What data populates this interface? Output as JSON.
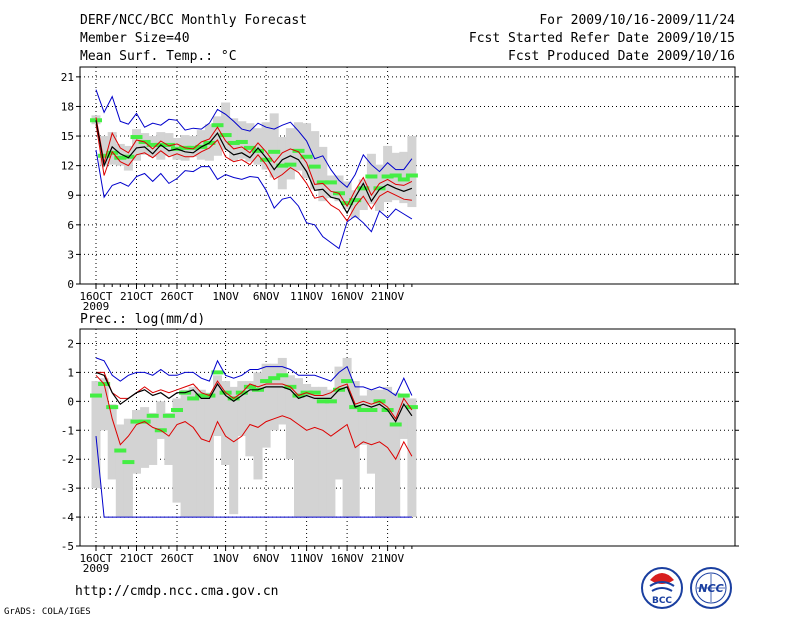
{
  "header": {
    "title": "DERF/NCC/BCC Monthly Forecast",
    "member_size": "Member Size=40",
    "variable": "Mean Surf. Temp.: °C",
    "period": "For 2009/10/16-2009/11/24",
    "started": "Fcst Started Refer Date 2009/10/15",
    "produced": "Fcst Produced Date 2009/10/16"
  },
  "footer": {
    "url": "http://cmdp.ncc.cma.gov.cn",
    "grads": "GrADS: COLA/IGES",
    "logo_bcc": "BCC",
    "logo_ncc": "NCC"
  },
  "colors": {
    "box": "#d3d3d3",
    "mean": "#000000",
    "ens_low_high": "#0000cc",
    "ens_band": "#dd0000",
    "climate": "#44ee44"
  },
  "chart_data": [
    {
      "type": "box",
      "title": "Mean Surf. Temp.: °C",
      "x_axis": {
        "start_date": "2009-10-16",
        "days": 40,
        "tick_labels": [
          "16OCT\n2009",
          "21OCT",
          "26OCT",
          "1NOV",
          "6NOV",
          "11NOV",
          "16NOV",
          "21NOV"
        ],
        "tick_days": [
          0,
          5,
          10,
          16,
          21,
          26,
          31,
          36
        ]
      },
      "ylim": [
        0,
        22
      ],
      "yticks": [
        0,
        3,
        6,
        9,
        12,
        15,
        18,
        21
      ],
      "series": {
        "box_low": [
          16.2,
          12.0,
          12.1,
          12.0,
          11.5,
          12.5,
          13.1,
          12.9,
          12.6,
          13.0,
          12.6,
          12.5,
          12.9,
          12.6,
          12.5,
          13.0,
          13.6,
          12.5,
          12.7,
          12.4,
          12.1,
          11.6,
          10.8,
          9.6,
          10.6,
          11.5,
          10.7,
          9.6,
          8.4,
          8.7,
          8.4,
          7.6,
          6.7,
          7.5,
          8.1,
          7.4,
          8.3,
          8.5,
          8.2,
          7.8
        ],
        "box_high": [
          17.1,
          15.0,
          15.4,
          14.2,
          14.0,
          15.7,
          15.3,
          15.0,
          15.4,
          15.3,
          14.8,
          15.1,
          15.0,
          15.6,
          16.2,
          17.0,
          18.4,
          16.8,
          16.5,
          16.3,
          15.8,
          16.4,
          17.3,
          14.9,
          15.8,
          16.4,
          16.3,
          15.5,
          13.9,
          11.0,
          11.0,
          10.4,
          9.5,
          10.6,
          13.2,
          12.1,
          14.0,
          13.3,
          13.4,
          15.0
        ],
        "climate": [
          16.6,
          13.0,
          13.3,
          12.8,
          12.9,
          14.9,
          14.4,
          14.1,
          14.1,
          14.1,
          13.7,
          13.8,
          13.8,
          13.9,
          14.3,
          16.1,
          15.1,
          14.3,
          14.4,
          13.8,
          13.5,
          12.6,
          13.4,
          12.0,
          12.1,
          13.5,
          12.9,
          11.9,
          10.3,
          10.3,
          9.2,
          8.2,
          8.5,
          9.7,
          10.9,
          9.7,
          10.9,
          11.0,
          10.6,
          11.0
        ],
        "mean": [
          16.6,
          12.0,
          13.9,
          13.2,
          12.8,
          13.8,
          13.9,
          13.2,
          14.1,
          13.5,
          13.7,
          13.4,
          13.3,
          13.9,
          14.3,
          15.3,
          13.7,
          13.1,
          13.3,
          12.8,
          13.8,
          12.8,
          11.6,
          12.6,
          13.0,
          12.6,
          11.4,
          9.5,
          9.6,
          8.8,
          8.6,
          7.2,
          8.8,
          10.2,
          8.4,
          9.6,
          10.1,
          9.7,
          9.4,
          9.7
        ],
        "band_high": [
          16.9,
          12.3,
          15.3,
          13.8,
          13.3,
          14.6,
          14.4,
          13.7,
          14.5,
          14.0,
          14.2,
          13.8,
          13.7,
          14.4,
          14.7,
          15.9,
          14.5,
          13.7,
          13.9,
          13.3,
          14.3,
          13.4,
          12.3,
          13.3,
          13.7,
          13.4,
          12.3,
          10.1,
          10.2,
          9.4,
          9.2,
          7.9,
          9.5,
          10.8,
          9.0,
          10.2,
          10.6,
          10.1,
          10.0,
          10.4
        ],
        "band_low": [
          16.2,
          11.0,
          13.4,
          12.4,
          12.0,
          13.1,
          13.3,
          12.8,
          13.5,
          12.9,
          13.2,
          12.9,
          12.9,
          13.4,
          13.8,
          14.6,
          12.9,
          12.4,
          12.6,
          12.1,
          13.1,
          12.1,
          10.6,
          11.1,
          11.8,
          11.3,
          10.2,
          8.7,
          8.9,
          8.0,
          7.5,
          6.4,
          7.9,
          8.9,
          7.6,
          8.9,
          9.4,
          9.0,
          8.6,
          8.5
        ],
        "ens_max": [
          19.7,
          17.4,
          19.0,
          16.5,
          16.2,
          17.3,
          15.9,
          16.3,
          16.1,
          16.7,
          16.6,
          15.6,
          15.8,
          15.7,
          16.3,
          17.7,
          17.2,
          16.5,
          15.7,
          15.5,
          16.3,
          15.9,
          15.7,
          16.1,
          16.4,
          15.5,
          14.5,
          12.7,
          13.0,
          11.6,
          10.5,
          9.8,
          11.1,
          13.1,
          12.1,
          11.4,
          12.3,
          11.6,
          11.6,
          12.7
        ],
        "ens_min": [
          13.6,
          8.8,
          10.0,
          10.3,
          9.9,
          10.9,
          11.2,
          10.4,
          11.2,
          10.2,
          10.7,
          11.5,
          11.4,
          11.9,
          11.9,
          10.6,
          11.1,
          10.8,
          10.6,
          10.9,
          10.8,
          9.5,
          7.7,
          8.6,
          8.8,
          7.9,
          6.2,
          6.0,
          4.8,
          4.2,
          3.6,
          6.3,
          6.9,
          6.2,
          5.3,
          7.4,
          6.7,
          7.6,
          7.1,
          6.6
        ]
      }
    },
    {
      "type": "box",
      "title": "Prec.: log(mm/d)",
      "x_axis": {
        "start_date": "2009-10-16",
        "days": 40,
        "tick_labels": [
          "16OCT\n2009",
          "21OCT",
          "26OCT",
          "1NOV",
          "6NOV",
          "11NOV",
          "16NOV",
          "21NOV"
        ],
        "tick_days": [
          0,
          5,
          10,
          16,
          21,
          26,
          31,
          36
        ]
      },
      "ylim": [
        -5,
        2.5
      ],
      "yticks": [
        -5,
        -4,
        -3,
        -2,
        -1,
        0,
        1,
        2
      ],
      "series": {
        "box_low": [
          -3.0,
          -1.0,
          -2.7,
          -4.0,
          -4.0,
          -2.5,
          -2.3,
          -2.2,
          -1.3,
          -2.2,
          -3.5,
          -4.0,
          -4.0,
          -4.0,
          -4.0,
          -1.2,
          -2.2,
          -3.9,
          -1.2,
          -1.9,
          -2.7,
          -1.6,
          -1.0,
          -0.8,
          -2.0,
          -4.0,
          -4.0,
          -4.0,
          -4.0,
          -4.0,
          -2.7,
          -4.0,
          -4.0,
          -1.5,
          -2.5,
          -4.0,
          -4.0,
          -4.0,
          -1.3,
          -4.0
        ],
        "box_high": [
          0.7,
          0.8,
          -0.1,
          -0.8,
          -0.6,
          -0.3,
          -0.2,
          -0.4,
          0.0,
          -0.4,
          0.1,
          0.4,
          0.5,
          0.4,
          0.3,
          0.9,
          0.7,
          0.5,
          0.7,
          0.7,
          1.0,
          1.3,
          1.3,
          1.5,
          0.9,
          0.8,
          0.6,
          0.5,
          0.5,
          0.4,
          1.2,
          1.5,
          0.7,
          0.2,
          0.4,
          0.4,
          0.5,
          0.3,
          0.2,
          0.1
        ],
        "climate": [
          0.2,
          0.6,
          -0.2,
          -1.7,
          -2.1,
          -0.7,
          -0.7,
          -0.5,
          -1.0,
          -0.5,
          -0.3,
          0.3,
          0.1,
          0.2,
          0.2,
          1.0,
          0.3,
          0.1,
          0.3,
          0.5,
          0.4,
          0.7,
          0.8,
          0.9,
          0.5,
          0.2,
          0.3,
          0.3,
          0.0,
          0.0,
          0.4,
          0.7,
          -0.2,
          -0.3,
          -0.3,
          0.0,
          -0.3,
          -0.8,
          0.2,
          -0.2
        ],
        "mean": [
          1.0,
          0.9,
          0.3,
          -0.1,
          0.1,
          0.3,
          0.4,
          0.2,
          0.3,
          0.1,
          0.3,
          0.3,
          0.4,
          0.1,
          0.1,
          0.6,
          0.2,
          0.0,
          0.2,
          0.4,
          0.4,
          0.5,
          0.5,
          0.5,
          0.4,
          0.1,
          0.2,
          0.1,
          0.1,
          0.1,
          0.4,
          0.5,
          -0.2,
          -0.1,
          -0.2,
          -0.1,
          -0.3,
          -0.7,
          -0.1,
          -0.5
        ],
        "band_high": [
          1.0,
          1.0,
          0.3,
          0.1,
          0.1,
          0.3,
          0.5,
          0.3,
          0.4,
          0.3,
          0.4,
          0.5,
          0.6,
          0.3,
          0.2,
          0.7,
          0.3,
          0.1,
          0.3,
          0.6,
          0.5,
          0.6,
          0.6,
          0.6,
          0.5,
          0.2,
          0.3,
          0.2,
          0.2,
          0.3,
          0.5,
          0.6,
          -0.1,
          0.0,
          -0.1,
          0.0,
          -0.2,
          -0.6,
          0.1,
          -0.3
        ],
        "band_low": [
          0.9,
          0.6,
          -0.6,
          -1.5,
          -1.2,
          -0.8,
          -0.7,
          -0.9,
          -1.0,
          -1.2,
          -0.8,
          -0.7,
          -0.9,
          -1.3,
          -1.4,
          -0.7,
          -1.2,
          -1.4,
          -1.2,
          -0.8,
          -0.9,
          -0.7,
          -0.6,
          -0.5,
          -0.6,
          -0.8,
          -1.0,
          -0.9,
          -1.0,
          -1.2,
          -1.0,
          -0.8,
          -1.6,
          -1.4,
          -1.5,
          -1.4,
          -1.6,
          -2.0,
          -1.4,
          -1.9
        ],
        "ens_max": [
          1.5,
          1.4,
          0.9,
          0.7,
          0.9,
          1.0,
          1.0,
          0.9,
          1.1,
          0.9,
          0.9,
          1.0,
          1.0,
          0.8,
          0.7,
          1.4,
          0.9,
          0.8,
          0.9,
          1.1,
          1.1,
          1.2,
          1.2,
          1.2,
          1.1,
          0.9,
          0.9,
          0.9,
          0.8,
          0.7,
          1.0,
          1.2,
          0.5,
          0.5,
          0.4,
          0.5,
          0.4,
          0.2,
          0.8,
          0.2
        ],
        "ens_min": [
          -1.2,
          -4.0,
          -4.0,
          -4.0,
          -4.0,
          -4.0,
          -4.0,
          -4.0,
          -4.0,
          -4.0,
          -4.0,
          -4.0,
          -4.0,
          -4.0,
          -4.0,
          -4.0,
          -4.0,
          -4.0,
          -4.0,
          -4.0,
          -4.0,
          -4.0,
          -4.0,
          -4.0,
          -4.0,
          -4.0,
          -4.0,
          -4.0,
          -4.0,
          -4.0,
          -4.0,
          -4.0,
          -4.0,
          -4.0,
          -4.0,
          -4.0,
          -4.0,
          -4.0,
          -4.0,
          -4.0
        ]
      }
    }
  ]
}
